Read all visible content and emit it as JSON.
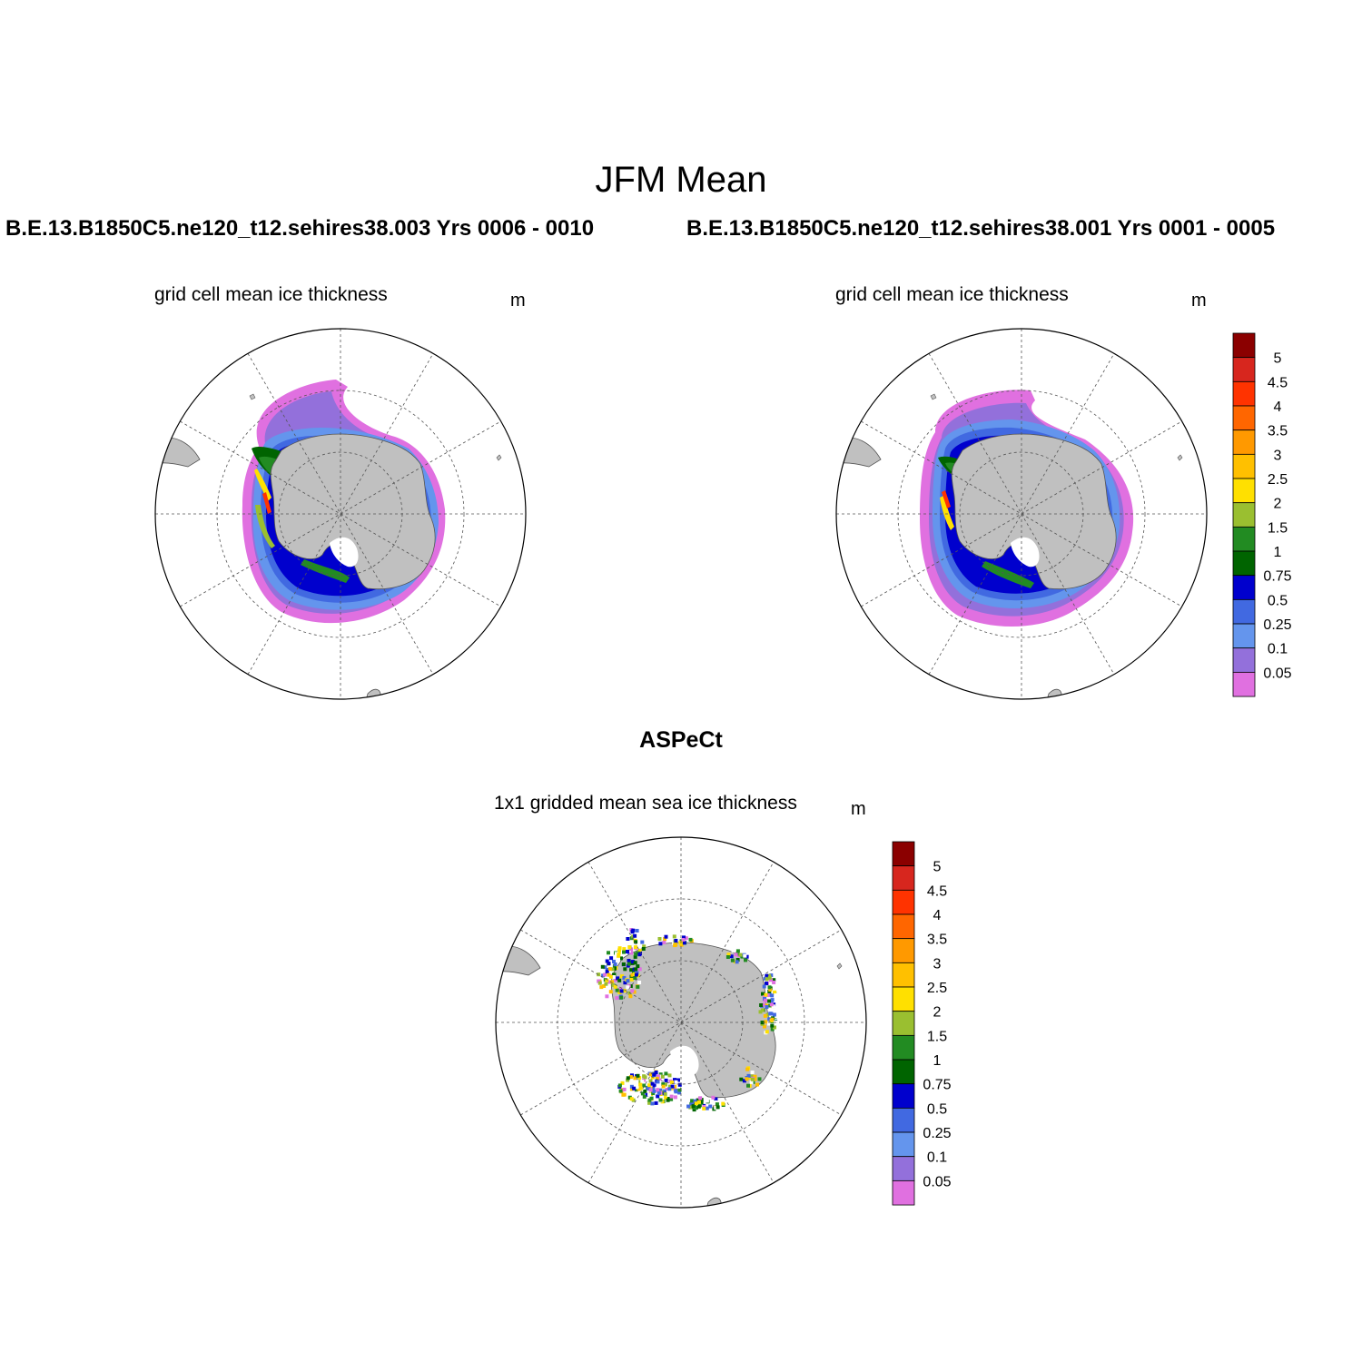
{
  "figure": {
    "title": "JFM Mean",
    "panels": [
      {
        "case_title": "B.E.13.B1850C5.ne120_t12.sehires38.003  Yrs 0006 - 0010",
        "variable": "grid cell mean ice thickness",
        "units": "m"
      },
      {
        "case_title": "B.E.13.B1850C5.ne120_t12.sehires38.001  Yrs 0001 - 0005",
        "variable": "grid cell mean ice thickness",
        "units": "m"
      },
      {
        "case_title": "ASPeCt",
        "variable": "1x1 gridded mean sea ice thickness",
        "units": "m"
      }
    ]
  },
  "colorbar": {
    "labels": [
      "5",
      "4.5",
      "4",
      "3.5",
      "3",
      "2.5",
      "2",
      "1.5",
      "1",
      "0.75",
      "0.5",
      "0.25",
      "0.1",
      "0.05"
    ],
    "colors": [
      "#8b0000",
      "#d7261e",
      "#ff3300",
      "#ff6600",
      "#ff9900",
      "#ffc000",
      "#ffe000",
      "#9abf30",
      "#228b22",
      "#006400",
      "#0000cd",
      "#4169e1",
      "#6495ed",
      "#9370db",
      "#e070e0"
    ]
  },
  "style": {
    "land_color": "#c0c0c0",
    "coastline_color": "#555555",
    "grid_color": "#555555"
  }
}
